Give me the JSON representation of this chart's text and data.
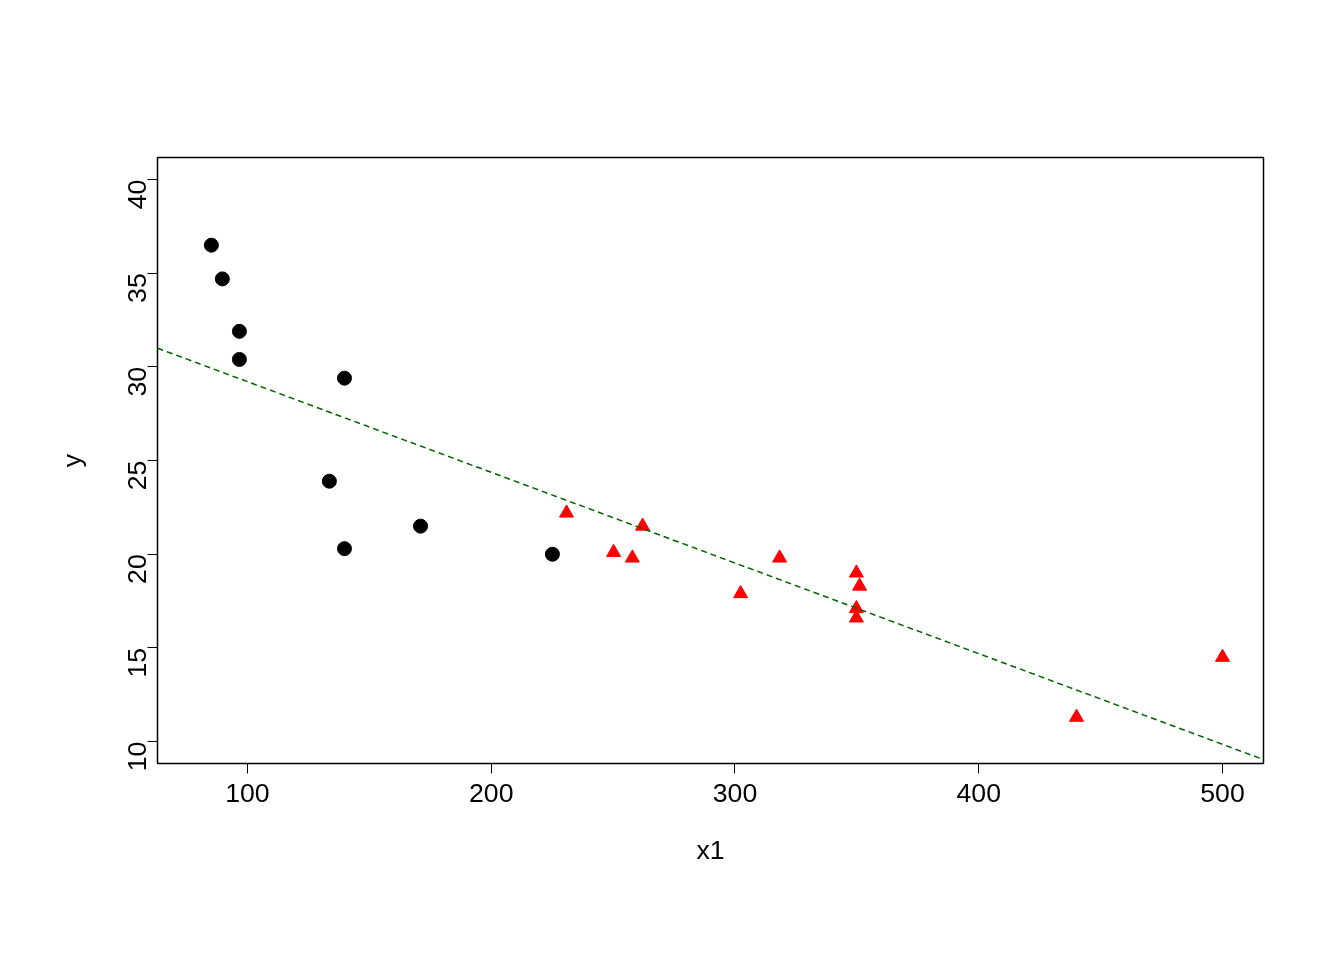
{
  "chart_data": {
    "type": "scatter",
    "xlabel": "x1",
    "ylabel": "y",
    "xlim": [
      63.1,
      516.8
    ],
    "ylim": [
      8.83,
      41.18
    ],
    "xticks": [
      100,
      200,
      300,
      400,
      500
    ],
    "yticks": [
      10,
      15,
      20,
      25,
      30,
      35,
      40
    ],
    "grid": false,
    "series": [
      {
        "marker": "circle",
        "color": "#000000",
        "x": [
          85.2,
          89.7,
          96.7,
          96.7,
          139.8,
          133.6,
          171.0,
          139.8,
          225.1
        ],
        "values": [
          36.5,
          34.7,
          31.9,
          30.4,
          29.4,
          23.9,
          21.5,
          20.3,
          20.0
        ]
      },
      {
        "marker": "triangle",
        "color": "#ff0000",
        "x": [
          230.9,
          250.2,
          257.9,
          262.1,
          302.3,
          318.3,
          349.8,
          351.1,
          349.8,
          349.8,
          440.1,
          500.0
        ],
        "values": [
          22.2,
          20.1,
          19.8,
          21.5,
          17.9,
          19.8,
          19.0,
          18.3,
          17.1,
          16.6,
          11.3,
          14.5
        ]
      },
      {
        "type": "line",
        "line_style": "dashed",
        "color": "#006400",
        "x": [
          63.1,
          516.8
        ],
        "values": [
          31.0,
          9.04
        ]
      }
    ]
  }
}
